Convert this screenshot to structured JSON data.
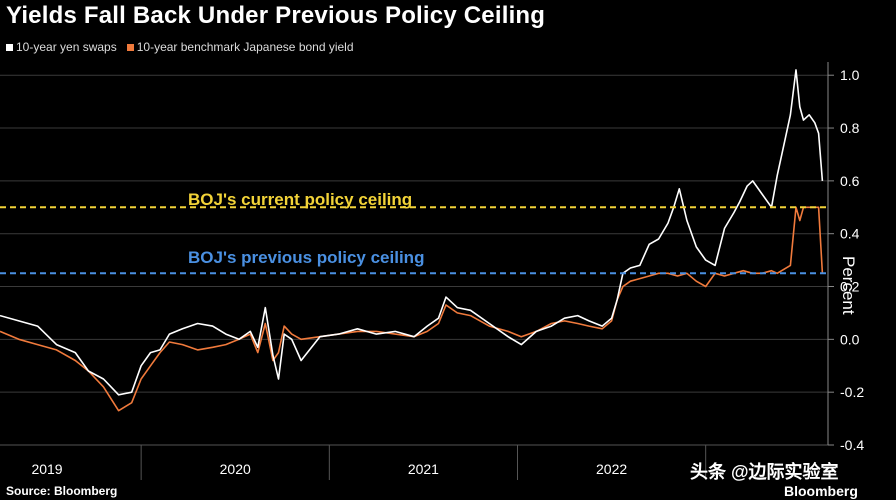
{
  "header": {
    "title": "Yields Fall Back Under Previous Policy Ceiling"
  },
  "footer": {
    "source": "Source: Bloomberg",
    "brand": "Bloomberg",
    "watermark": "头条 @边际实验室"
  },
  "colors": {
    "background": "#000000",
    "swaps": "#ffffff",
    "jgb": "#f07a3c",
    "current_ceiling": "#f2d338",
    "previous_ceiling": "#4a90e2",
    "grid": "#3a3a3a"
  },
  "chart_data": {
    "type": "line",
    "title": "Yields Fall Back Under Previous Policy Ceiling",
    "ylabel": "Percent",
    "xlabel": "",
    "ylim": [
      -0.4,
      1.05
    ],
    "yticks": [
      -0.4,
      -0.2,
      0.0,
      0.2,
      0.4,
      0.6,
      0.8,
      1.0
    ],
    "ytick_labels": [
      "-0.4",
      "-0.2",
      "0.0",
      "0.2",
      "0.4",
      "0.6",
      "0.8",
      "1.0"
    ],
    "xlim": [
      2018.75,
      2023.15
    ],
    "x_ticks": [
      2019,
      2020,
      2021,
      2022
    ],
    "x_tick_labels": [
      "2019",
      "2020",
      "2021",
      "2022"
    ],
    "year_dividers": [
      2019.5,
      2020.5,
      2021.5,
      2022.5
    ],
    "grid": true,
    "legend_position": "top-left",
    "series": [
      {
        "name": "10-year yen swaps",
        "x": [
          2018.75,
          2018.85,
          2018.95,
          2019.05,
          2019.15,
          2019.22,
          2019.3,
          2019.38,
          2019.45,
          2019.5,
          2019.55,
          2019.6,
          2019.65,
          2019.72,
          2019.8,
          2019.88,
          2019.95,
          2020.02,
          2020.08,
          2020.12,
          2020.16,
          2020.2,
          2020.23,
          2020.26,
          2020.3,
          2020.35,
          2020.45,
          2020.55,
          2020.65,
          2020.75,
          2020.85,
          2020.95,
          2021.02,
          2021.08,
          2021.12,
          2021.18,
          2021.25,
          2021.35,
          2021.45,
          2021.52,
          2021.6,
          2021.68,
          2021.75,
          2021.82,
          2021.88,
          2021.95,
          2022.0,
          2022.03,
          2022.06,
          2022.1,
          2022.15,
          2022.2,
          2022.25,
          2022.3,
          2022.33,
          2022.36,
          2022.4,
          2022.45,
          2022.5,
          2022.55,
          2022.6,
          2022.65,
          2022.68,
          2022.72,
          2022.75,
          2022.8,
          2022.85,
          2022.88,
          2022.92,
          2022.95,
          2022.98,
          2023.0,
          2023.02,
          2023.05,
          2023.08,
          2023.1,
          2023.12
        ],
        "y": [
          0.09,
          0.07,
          0.05,
          -0.02,
          -0.05,
          -0.12,
          -0.15,
          -0.21,
          -0.2,
          -0.1,
          -0.05,
          -0.04,
          0.02,
          0.04,
          0.06,
          0.05,
          0.02,
          0.0,
          0.03,
          -0.03,
          0.12,
          -0.06,
          -0.15,
          0.02,
          0.0,
          -0.08,
          0.01,
          0.02,
          0.04,
          0.02,
          0.03,
          0.01,
          0.05,
          0.08,
          0.16,
          0.12,
          0.11,
          0.06,
          0.01,
          -0.02,
          0.03,
          0.05,
          0.08,
          0.09,
          0.07,
          0.05,
          0.08,
          0.15,
          0.25,
          0.27,
          0.28,
          0.36,
          0.38,
          0.44,
          0.5,
          0.57,
          0.45,
          0.35,
          0.3,
          0.28,
          0.42,
          0.48,
          0.52,
          0.58,
          0.6,
          0.55,
          0.5,
          0.62,
          0.75,
          0.85,
          1.02,
          0.88,
          0.83,
          0.85,
          0.82,
          0.78,
          0.6
        ]
      },
      {
        "name": "10-year benchmark Japanese bond yield",
        "x": [
          2018.75,
          2018.85,
          2018.95,
          2019.05,
          2019.15,
          2019.22,
          2019.3,
          2019.38,
          2019.45,
          2019.5,
          2019.55,
          2019.6,
          2019.65,
          2019.72,
          2019.8,
          2019.88,
          2019.95,
          2020.02,
          2020.08,
          2020.12,
          2020.16,
          2020.2,
          2020.23,
          2020.26,
          2020.3,
          2020.35,
          2020.45,
          2020.55,
          2020.65,
          2020.75,
          2020.85,
          2020.95,
          2021.02,
          2021.08,
          2021.12,
          2021.18,
          2021.25,
          2021.35,
          2021.45,
          2021.52,
          2021.6,
          2021.68,
          2021.75,
          2021.82,
          2021.88,
          2021.95,
          2022.0,
          2022.03,
          2022.06,
          2022.1,
          2022.15,
          2022.2,
          2022.25,
          2022.3,
          2022.35,
          2022.4,
          2022.45,
          2022.5,
          2022.55,
          2022.6,
          2022.65,
          2022.7,
          2022.75,
          2022.8,
          2022.85,
          2022.88,
          2022.95,
          2022.98,
          2023.0,
          2023.02,
          2023.05,
          2023.08,
          2023.1,
          2023.12
        ],
        "y": [
          0.03,
          0.0,
          -0.02,
          -0.04,
          -0.08,
          -0.12,
          -0.18,
          -0.27,
          -0.24,
          -0.15,
          -0.1,
          -0.05,
          -0.01,
          -0.02,
          -0.04,
          -0.03,
          -0.02,
          0.0,
          0.02,
          -0.05,
          0.06,
          -0.08,
          -0.05,
          0.05,
          0.02,
          0.0,
          0.01,
          0.02,
          0.03,
          0.03,
          0.02,
          0.01,
          0.03,
          0.06,
          0.13,
          0.1,
          0.09,
          0.05,
          0.03,
          0.01,
          0.03,
          0.06,
          0.07,
          0.06,
          0.05,
          0.04,
          0.07,
          0.15,
          0.2,
          0.22,
          0.23,
          0.24,
          0.25,
          0.25,
          0.24,
          0.25,
          0.22,
          0.2,
          0.25,
          0.24,
          0.25,
          0.26,
          0.25,
          0.25,
          0.26,
          0.25,
          0.28,
          0.5,
          0.45,
          0.5,
          0.5,
          0.5,
          0.5,
          0.25
        ]
      }
    ],
    "reference_lines": [
      {
        "name": "current_ceiling",
        "y": 0.5,
        "label": "BOJ's current policy ceiling",
        "style": "dashed"
      },
      {
        "name": "previous_ceiling",
        "y": 0.25,
        "label": "BOJ's previous policy ceiling",
        "style": "dashed"
      }
    ]
  }
}
